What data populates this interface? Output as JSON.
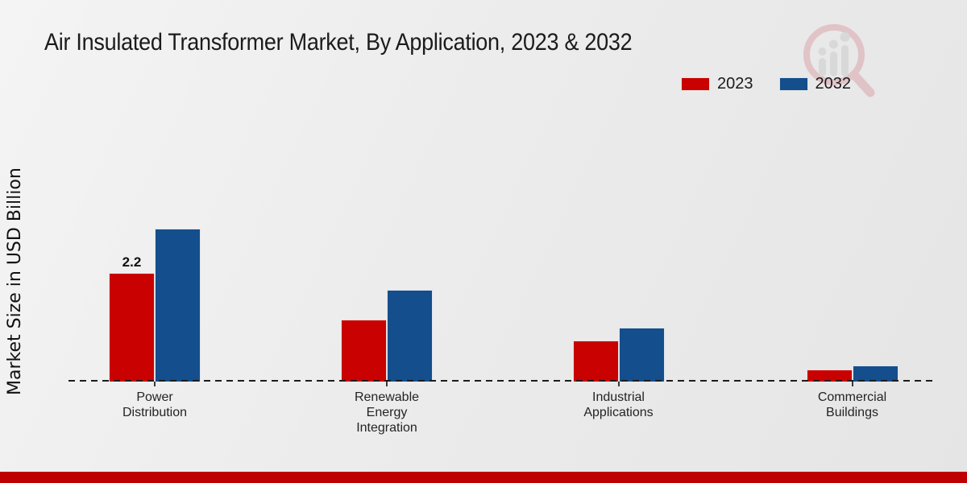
{
  "page": {
    "title": "Air Insulated Transformer Market, By Application, 2023 & 2032"
  },
  "legend": {
    "items": [
      {
        "label": "2023",
        "color": "#c90101"
      },
      {
        "label": "2032",
        "color": "#144e8c"
      }
    ]
  },
  "chart_data": {
    "type": "bar",
    "title": "Air Insulated Transformer Market, By Application, 2023 & 2032",
    "xlabel": "",
    "ylabel": "Market Size in USD Billion",
    "categories": [
      "Power Distribution",
      "Renewable Energy Integration",
      "Industrial Applications",
      "Commercial Buildings"
    ],
    "categories_display": [
      "Power\nDistribution",
      "Renewable\nEnergy\nIntegration",
      "Industrial\nApplications",
      "Commercial\nBuildings"
    ],
    "series": [
      {
        "name": "2023",
        "color": "#c90101",
        "values": [
          2.2,
          1.25,
          0.83,
          0.25
        ],
        "value_labels": [
          "2.2",
          "",
          "",
          ""
        ]
      },
      {
        "name": "2032",
        "color": "#144e8c",
        "values": [
          3.1,
          1.85,
          1.09,
          0.33
        ],
        "value_labels": [
          "",
          "",
          "",
          ""
        ]
      }
    ],
    "ylim": [
      0,
      3.5
    ],
    "grid": false,
    "legend_position": "top-right",
    "baseline_style": "dashed",
    "units": "USD Billion"
  },
  "icons": {
    "watermark": "magnifier-bar-chart-logo"
  },
  "footer": {
    "color": "#bf0000"
  }
}
